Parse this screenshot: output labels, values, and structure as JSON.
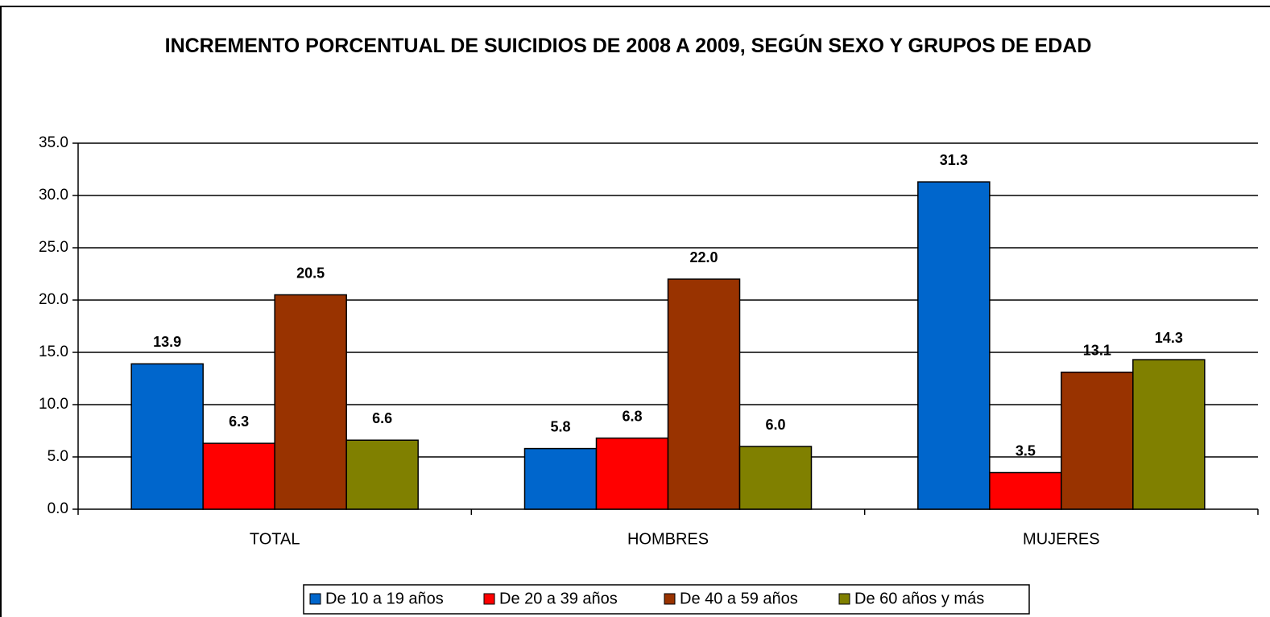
{
  "chart_data": {
    "type": "bar",
    "title": "INCREMENTO PORCENTUAL DE SUICIDIOS DE 2008 A 2009, SEGÚN SEXO Y GRUPOS DE EDAD",
    "categories": [
      "TOTAL",
      "HOMBRES",
      "MUJERES"
    ],
    "series": [
      {
        "name": "De 10 a 19 años",
        "color": "#0066cc",
        "values": [
          13.9,
          5.8,
          31.3
        ],
        "value_labels": [
          "13.9",
          "5.8",
          "31.3"
        ]
      },
      {
        "name": "De 20 a 39 años",
        "color": "#ff0000",
        "values": [
          6.3,
          6.8,
          3.5
        ],
        "value_labels": [
          "6.3",
          "6.8",
          "3.5"
        ]
      },
      {
        "name": "De 40 a 59 años",
        "color": "#993300",
        "values": [
          20.5,
          22.0,
          13.1
        ],
        "value_labels": [
          "20.5",
          "22.0",
          "13.1"
        ]
      },
      {
        "name": "De 60 años y más",
        "color": "#808000",
        "values": [
          6.6,
          6.0,
          14.3
        ],
        "value_labels": [
          "6.6",
          "6.0",
          "14.3"
        ]
      }
    ],
    "ylim": [
      0,
      35
    ],
    "yticks": [
      {
        "value": 0,
        "label": "0.0"
      },
      {
        "value": 5,
        "label": "5.0"
      },
      {
        "value": 10,
        "label": "10.0"
      },
      {
        "value": 15,
        "label": "15.0"
      },
      {
        "value": 20,
        "label": "20.0"
      },
      {
        "value": 25,
        "label": "25.0"
      },
      {
        "value": 30,
        "label": "30.0"
      },
      {
        "value": 35,
        "label": "35.0"
      }
    ],
    "grid": true,
    "legend": "bottom"
  }
}
